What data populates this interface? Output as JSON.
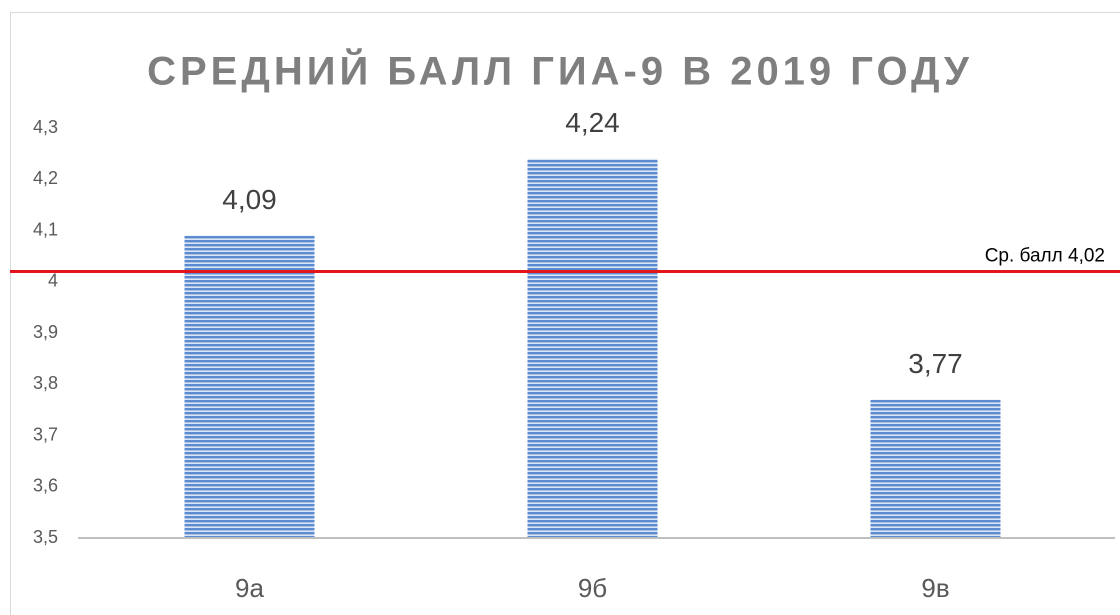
{
  "chart_data": {
    "type": "bar",
    "title": "СРЕДНИЙ БАЛЛ ГИА-9 В 2019 ГОДУ",
    "categories": [
      "9а",
      "9б",
      "9в"
    ],
    "values": [
      4.09,
      4.24,
      3.77
    ],
    "value_labels": [
      "4,09",
      "4,24",
      "3,77"
    ],
    "color": "#5b8bd0",
    "ylim": [
      3.5,
      4.3
    ],
    "yticks": [
      {
        "value": 3.5,
        "label": "3,5"
      },
      {
        "value": 3.6,
        "label": "3,6"
      },
      {
        "value": 3.7,
        "label": "3,7"
      },
      {
        "value": 3.8,
        "label": "3,8"
      },
      {
        "value": 3.9,
        "label": "3,9"
      },
      4,
      {
        "value": 4.1,
        "label": "4,1"
      },
      {
        "value": 4.2,
        "label": "4,2"
      },
      {
        "value": 4.3,
        "label": "4,3"
      }
    ],
    "grid": false,
    "reference_line": {
      "value": 4.02,
      "label": "Ср. балл 4,02",
      "color": "#e3151a"
    }
  }
}
